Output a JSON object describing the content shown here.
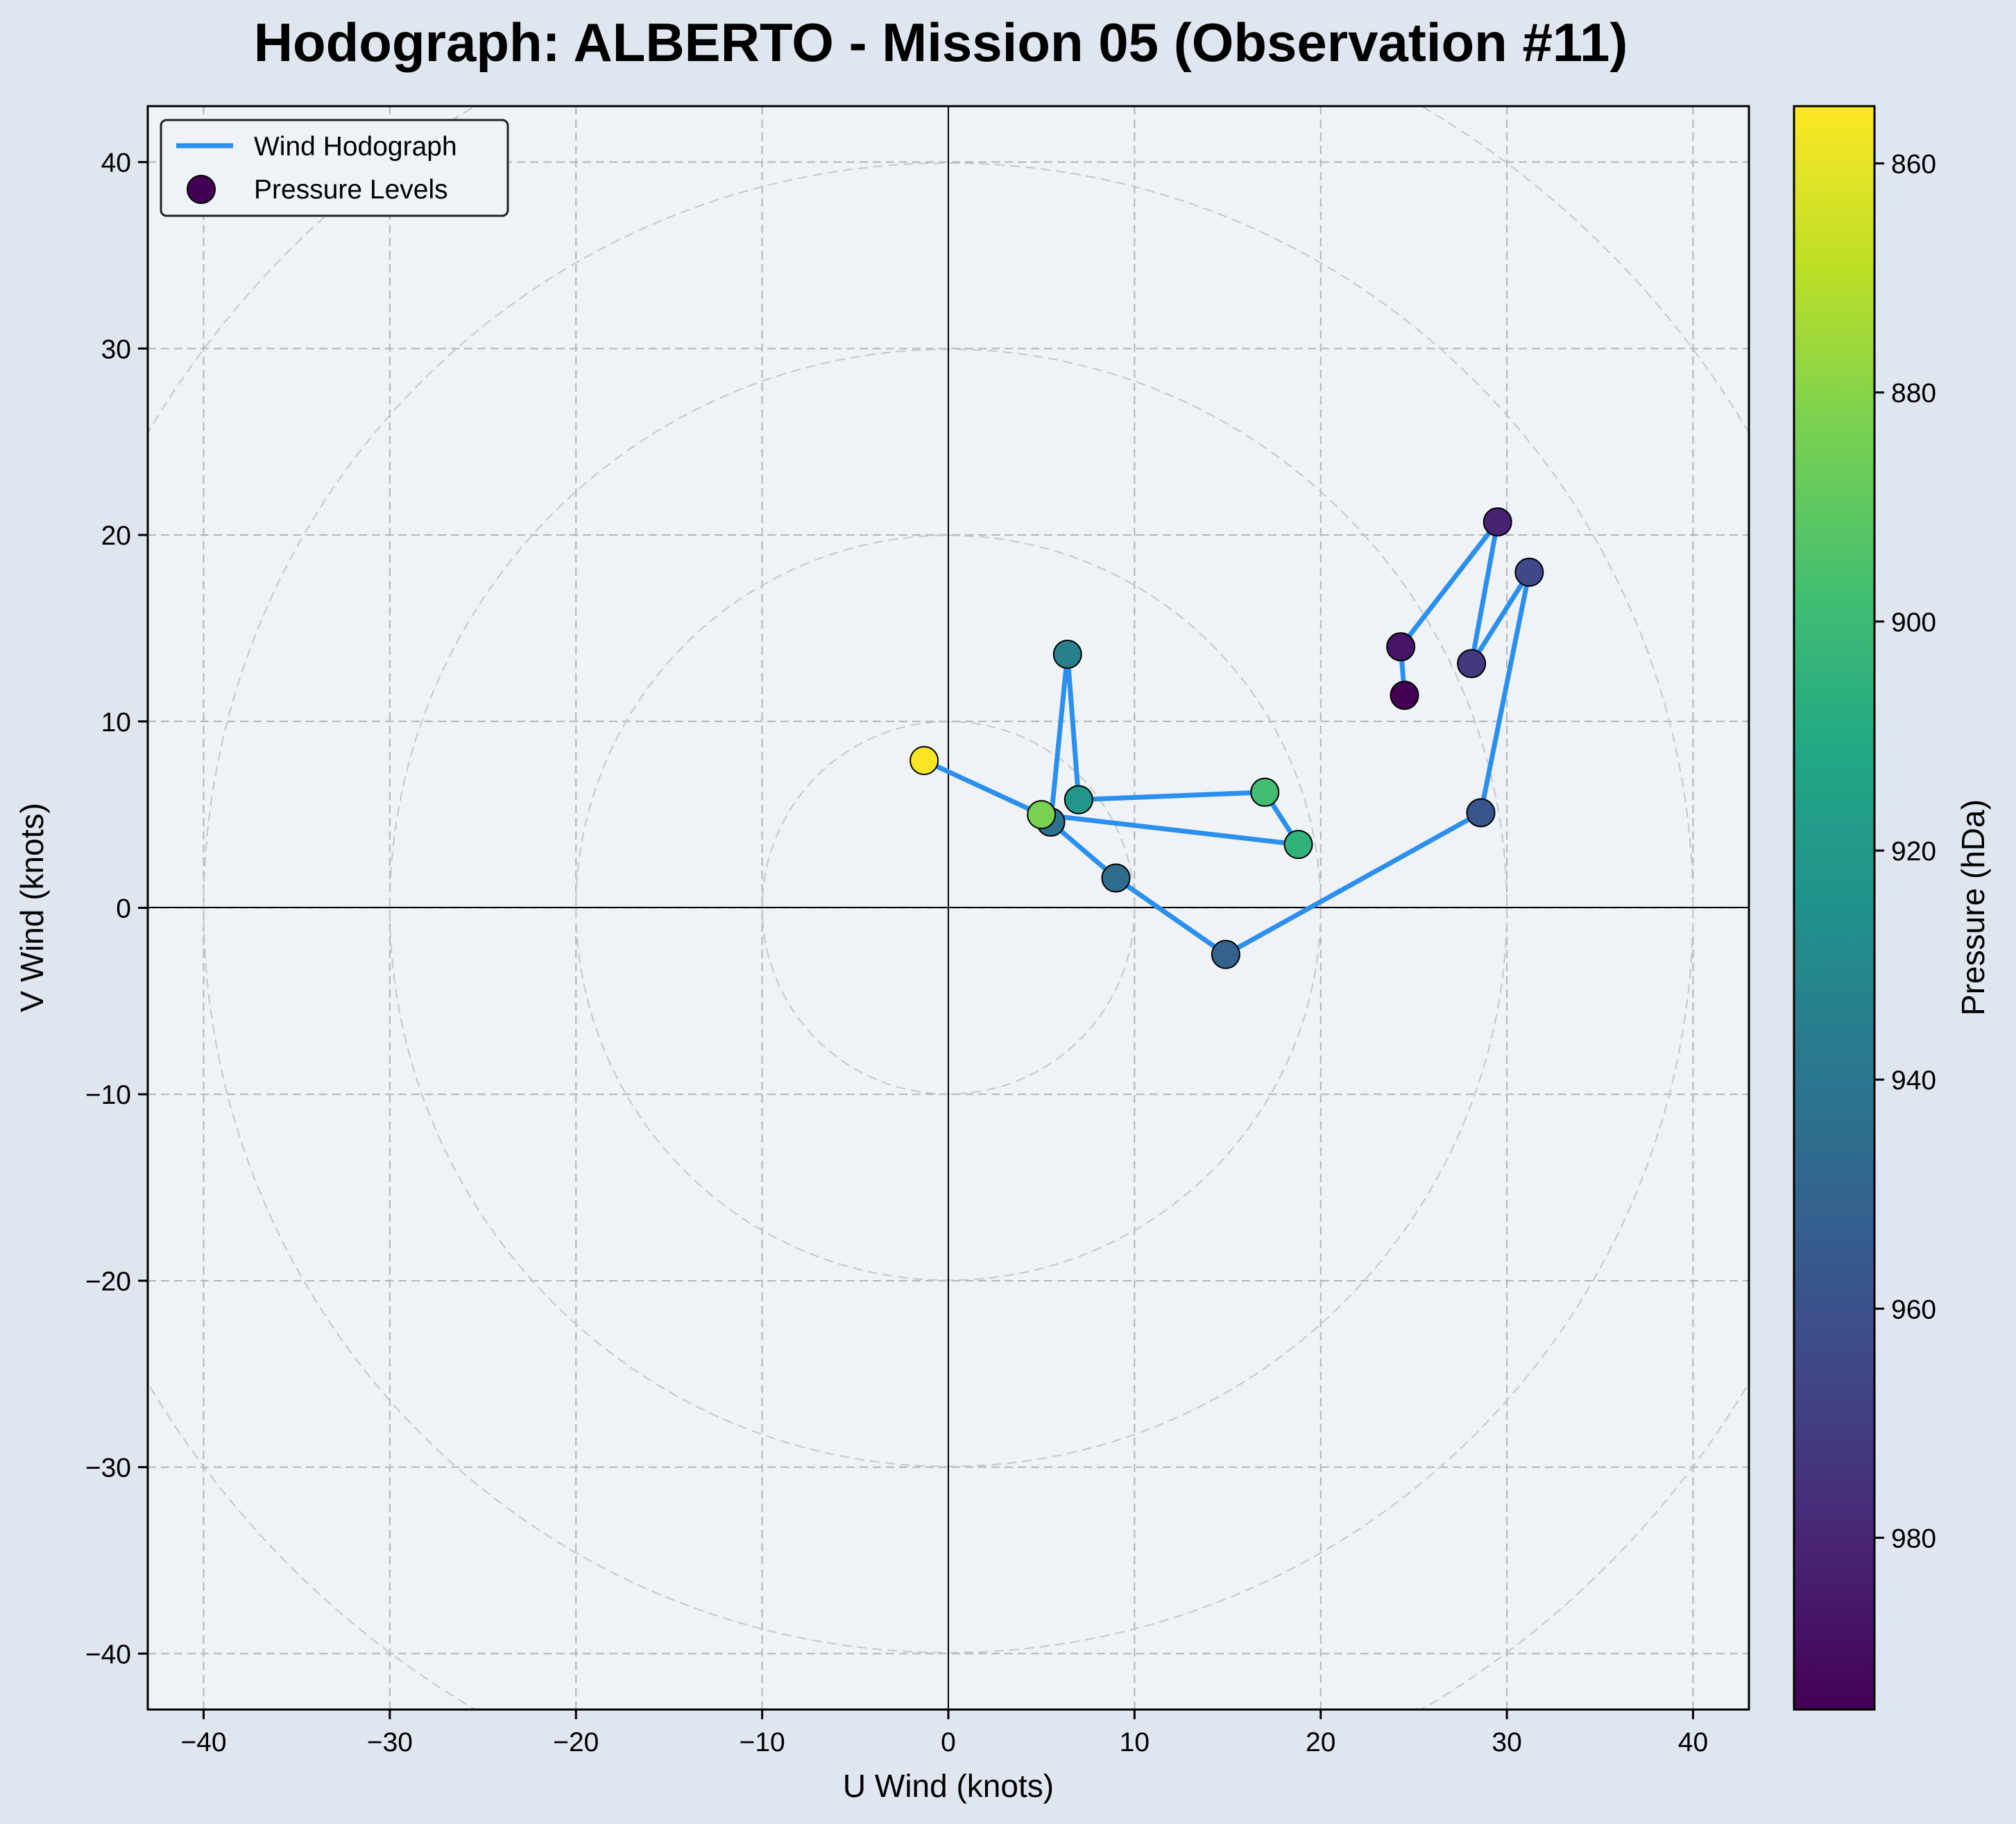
{
  "chart_data": {
    "type": "scatter",
    "title": "Hodograph: ALBERTO - Mission 05 (Observation #11)",
    "xlabel": "U Wind (knots)",
    "ylabel": "V Wind (knots)",
    "xlim": [
      -43,
      43
    ],
    "ylim": [
      -43,
      43
    ],
    "xticks": [
      -40,
      -30,
      -20,
      -10,
      0,
      10,
      20,
      30,
      40
    ],
    "yticks": [
      -40,
      -30,
      -20,
      -10,
      0,
      10,
      20,
      30,
      40
    ],
    "grid": true,
    "range_rings": [
      10,
      20,
      30,
      40,
      50
    ],
    "legend": {
      "placement": "top-left",
      "entries": [
        "Wind Hodograph",
        "Pressure Levels"
      ]
    },
    "colorbar": {
      "label": "Pressure (hDa)",
      "min": 855,
      "max": 995,
      "ticks": [
        860,
        880,
        900,
        920,
        940,
        960,
        980
      ],
      "reversed": true,
      "colormap": "viridis"
    },
    "line_color": "#2b8fee",
    "series": [
      {
        "name": "Wind Hodograph",
        "points": [
          {
            "u": 24.5,
            "v": 11.4,
            "p": 995
          },
          {
            "u": 24.3,
            "v": 14.0,
            "p": 987
          },
          {
            "u": 29.5,
            "v": 20.7,
            "p": 982
          },
          {
            "u": 28.1,
            "v": 13.1,
            "p": 972
          },
          {
            "u": 31.2,
            "v": 18.0,
            "p": 965
          },
          {
            "u": 28.6,
            "v": 5.1,
            "p": 958
          },
          {
            "u": 14.9,
            "v": -2.5,
            "p": 951
          },
          {
            "u": 9.0,
            "v": 1.6,
            "p": 946
          },
          {
            "u": 5.5,
            "v": 4.6,
            "p": 942
          },
          {
            "u": 6.4,
            "v": 13.6,
            "p": 934
          },
          {
            "u": 7.0,
            "v": 5.8,
            "p": 922
          },
          {
            "u": 17.0,
            "v": 6.2,
            "p": 898
          },
          {
            "u": 18.8,
            "v": 3.4,
            "p": 905
          },
          {
            "u": 5.0,
            "v": 5.0,
            "p": 883
          },
          {
            "u": -1.3,
            "v": 7.9,
            "p": 856
          }
        ]
      }
    ]
  }
}
